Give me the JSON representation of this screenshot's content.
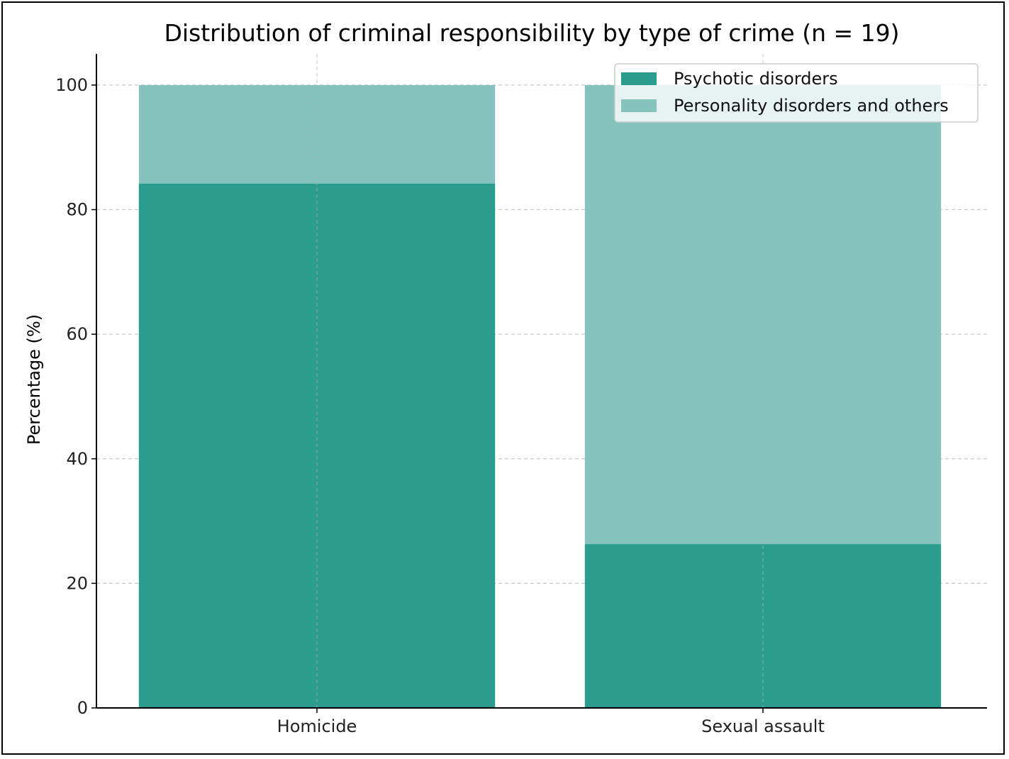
{
  "chart_data": {
    "type": "bar",
    "stacked": true,
    "title": "Distribution of criminal responsibility by type of crime (n = 19)",
    "xlabel": "",
    "ylabel": "Percentage (%)",
    "ylim": [
      0,
      105
    ],
    "yticks": [
      0,
      20,
      40,
      60,
      80,
      100
    ],
    "categories": [
      "Homicide",
      "Sexual assault"
    ],
    "series": [
      {
        "name": "Psychotic disorders",
        "values": [
          84.2,
          26.3
        ],
        "color": "#2a9d8f"
      },
      {
        "name": "Personality disorders and others",
        "values": [
          15.8,
          73.7
        ],
        "color": "#86c3bc"
      }
    ],
    "grid": true,
    "legend_position": "top-right"
  }
}
